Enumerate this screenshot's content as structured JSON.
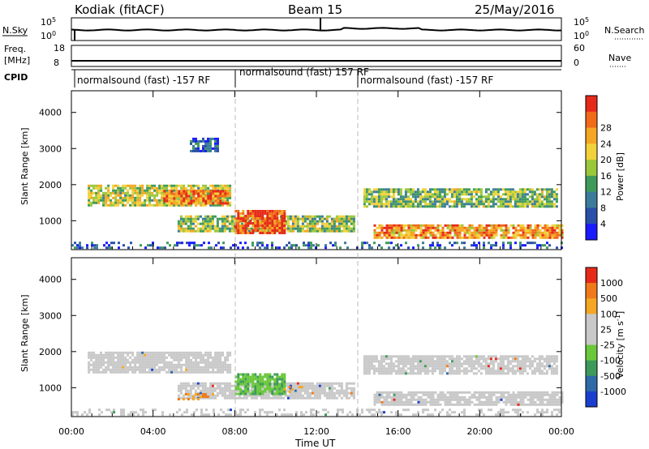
{
  "header": {
    "station": "Kodiak (fitACF)",
    "beam": "Beam 15",
    "date": "25/May/2016"
  },
  "strip_labels": {
    "nsky": "N.Sky",
    "nsky_ticks": [
      "10^5",
      "10^0"
    ],
    "nsearch": "N.Search",
    "nsearch_ticks": [
      "10^5",
      "10^0"
    ],
    "freq_line1": "Freq.",
    "freq_line2": "[MHz]",
    "freq_ticks": [
      "18",
      "8"
    ],
    "nave": "Nave",
    "nave_ticks": [
      "60",
      "0"
    ],
    "cpid": "CPID"
  },
  "cpid_segments": [
    {
      "label": "normalsound (fast) -157 RF",
      "start_hour": 0
    },
    {
      "label": "normalsound (fast) 157 RF",
      "start_hour": 8
    },
    {
      "label": "normalsound (fast) -157 RF",
      "start_hour": 14
    }
  ],
  "chart_data": [
    {
      "type": "heatmap",
      "panel": "power",
      "ylabel": "Slant Range [km]",
      "xlabel": "",
      "x_ticks": [
        "00:00",
        "04:00",
        "08:00",
        "12:00",
        "16:00",
        "20:00",
        "00:00"
      ],
      "x_tick_hours": [
        0,
        4,
        8,
        12,
        16,
        20,
        24
      ],
      "xlim": [
        0,
        24
      ],
      "y_ticks": [
        1000,
        2000,
        3000,
        4000
      ],
      "ylim": [
        200,
        4600
      ],
      "colorbar": {
        "label": "Power [dB]",
        "ticks": [
          "4",
          "8",
          "12",
          "16",
          "20",
          "24",
          "28"
        ],
        "colors": [
          "#1a1aff",
          "#2a4fa8",
          "#3c7c9a",
          "#3f9a5a",
          "#9ac83a",
          "#f2d23a",
          "#f5a623",
          "#f06a1a",
          "#e62a1a"
        ]
      },
      "regions": [
        {
          "t0": 0.8,
          "t1": 7.8,
          "r0": 1400,
          "r1": 2000,
          "level": 0.55
        },
        {
          "t0": 4.5,
          "t1": 7.6,
          "r0": 1500,
          "r1": 1850,
          "level": 0.8
        },
        {
          "t0": 5.2,
          "t1": 13.9,
          "r0": 700,
          "r1": 1150,
          "level": 0.5
        },
        {
          "t0": 8.0,
          "t1": 10.5,
          "r0": 650,
          "r1": 1300,
          "level": 0.9
        },
        {
          "t0": 5.8,
          "t1": 7.2,
          "r0": 2900,
          "r1": 3300,
          "level": 0.2
        },
        {
          "t0": 14.3,
          "t1": 23.8,
          "r0": 1400,
          "r1": 1900,
          "level": 0.45
        },
        {
          "t0": 14.8,
          "t1": 24.0,
          "r0": 550,
          "r1": 900,
          "level": 0.75
        },
        {
          "t0": 0.0,
          "t1": 24.0,
          "r0": 250,
          "r1": 420,
          "level": 0.2
        }
      ]
    },
    {
      "type": "heatmap",
      "panel": "velocity",
      "ylabel": "Slant Range [km]",
      "xlabel": "Time UT",
      "x_ticks": [
        "00:00",
        "04:00",
        "08:00",
        "12:00",
        "16:00",
        "20:00",
        "00:00"
      ],
      "x_tick_hours": [
        0,
        4,
        8,
        12,
        16,
        20,
        24
      ],
      "xlim": [
        0,
        24
      ],
      "y_ticks": [
        1000,
        2000,
        3000,
        4000
      ],
      "ylim": [
        200,
        4600
      ],
      "colorbar": {
        "label": "Velocity [m s^-1]",
        "ticks": [
          "1000",
          "500",
          "100",
          "25",
          "-25",
          "-100",
          "-500",
          "-1000"
        ],
        "colors": [
          "#1a3fcf",
          "#2f6aa8",
          "#3d9a5a",
          "#6ac83a",
          "#c8c8c8",
          "#c8c8c8",
          "#f5a623",
          "#f07a1a",
          "#e62a1a"
        ]
      },
      "regions": [
        {
          "t0": 0.8,
          "t1": 7.8,
          "r0": 1400,
          "r1": 2000,
          "kind": "gray"
        },
        {
          "t0": 5.2,
          "t1": 13.9,
          "r0": 700,
          "r1": 1150,
          "kind": "gray"
        },
        {
          "t0": 8.0,
          "t1": 10.5,
          "r0": 800,
          "r1": 1400,
          "kind": "green"
        },
        {
          "t0": 10.4,
          "t1": 11.3,
          "r0": 850,
          "r1": 1050,
          "kind": "orange"
        },
        {
          "t0": 5.2,
          "t1": 7.0,
          "r0": 650,
          "r1": 850,
          "kind": "orange"
        },
        {
          "t0": 14.3,
          "t1": 23.8,
          "r0": 1400,
          "r1": 1900,
          "kind": "gray"
        },
        {
          "t0": 14.8,
          "t1": 24.0,
          "r0": 550,
          "r1": 900,
          "kind": "gray"
        },
        {
          "t0": 0.0,
          "t1": 24.0,
          "r0": 250,
          "r1": 420,
          "kind": "gray"
        }
      ]
    }
  ]
}
